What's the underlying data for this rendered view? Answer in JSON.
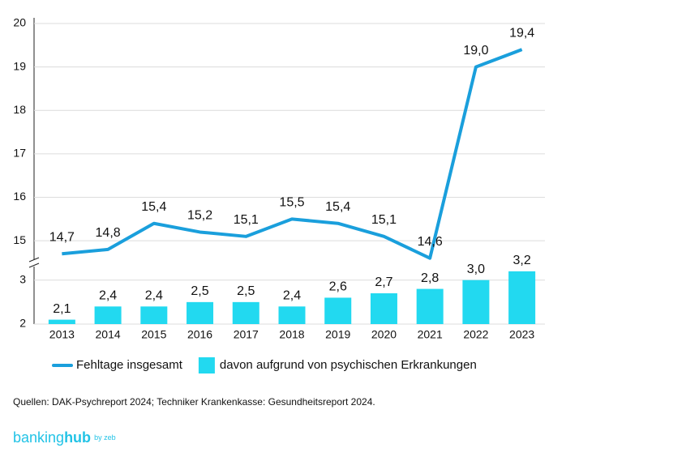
{
  "chart_data": {
    "type": "combo",
    "categories": [
      "2013",
      "2014",
      "2015",
      "2016",
      "2017",
      "2018",
      "2019",
      "2020",
      "2021",
      "2022",
      "2023"
    ],
    "series": [
      {
        "name": "Fehltage insgesamt",
        "type": "line",
        "color": "#1a9fdc",
        "values": [
          14.7,
          14.8,
          15.4,
          15.2,
          15.1,
          15.5,
          15.4,
          15.1,
          14.6,
          19.0,
          19.4
        ],
        "value_labels": [
          "14,7",
          "14,8",
          "15,4",
          "15,2",
          "15,1",
          "15,5",
          "15,4",
          "15,1",
          "14,6",
          "19,0",
          "19,4"
        ]
      },
      {
        "name": "davon aufgrund von psychischen Erkrankungen",
        "type": "bar",
        "axis": "y2",
        "color": "#22d9f0",
        "values": [
          2.1,
          2.4,
          2.4,
          2.5,
          2.5,
          2.4,
          2.6,
          2.7,
          2.8,
          3.0,
          3.2
        ],
        "value_labels": [
          "2,1",
          "2,4",
          "2,4",
          "2,5",
          "2,5",
          "2,4",
          "2,6",
          "2,7",
          "2,8",
          "3,0",
          "3,2"
        ]
      }
    ],
    "ylim": [
      14.5,
      20
    ],
    "yticks": [
      15,
      16,
      17,
      18,
      19,
      20
    ],
    "y2lim": [
      2,
      3.4
    ],
    "y2ticks": [
      2,
      3
    ],
    "grid": true,
    "legend": "bottom"
  },
  "footer": {
    "source": "Quellen: DAK-Psychreport 2024; Techniker Krankenkasse: Gesundheitsreport 2024.",
    "logo": {
      "main": "banking",
      "bold": "hub",
      "suffix": "by zeb"
    }
  }
}
